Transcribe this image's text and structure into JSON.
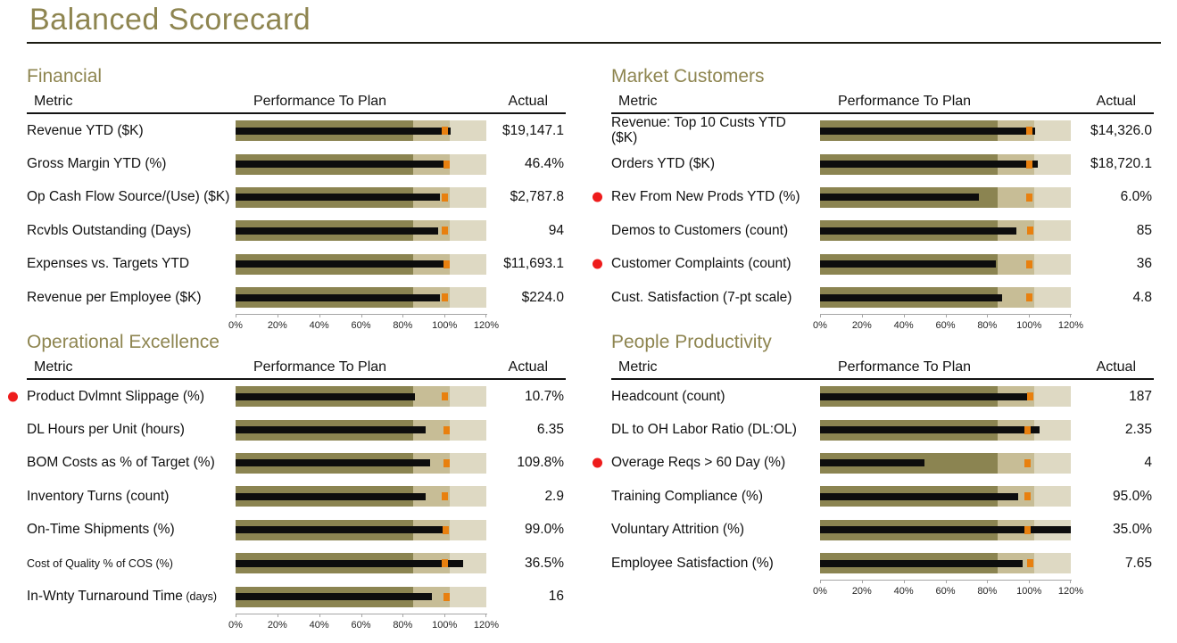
{
  "page": {
    "title": "Balanced Scorecard"
  },
  "columns": {
    "metric": "Metric",
    "performance": "Performance To Plan",
    "actual": "Actual"
  },
  "axis": {
    "tick_labels": [
      "0%",
      "20%",
      "40%",
      "60%",
      "80%",
      "100%",
      "120%"
    ],
    "min_pct": 0,
    "max_pct": 120
  },
  "colors": {
    "accent_olive": "#8e8550",
    "band_low": "#8b8451",
    "band_mid": "#c7bd96",
    "band_high": "#ded9c3",
    "value_bar": "#0d0d0d",
    "target_marker": "#e8800f",
    "alert_dot": "#ee1c1c",
    "text": "#1a1a1a"
  },
  "chart_data": [
    {
      "type": "bullet",
      "title": "Financial",
      "bands_pct": [
        85,
        102.5,
        120
      ],
      "rows": [
        {
          "metric": "Revenue YTD ($K)",
          "actual": "$19,147.1",
          "performance_pct": 103,
          "target_pct": 100,
          "alert": false
        },
        {
          "metric": "Gross Margin YTD (%)",
          "actual": "46.4%",
          "performance_pct": 99.5,
          "target_pct": 101,
          "alert": false
        },
        {
          "metric": "Op Cash Flow Source/(Use) ($K)",
          "actual": "$2,787.8",
          "performance_pct": 98,
          "target_pct": 100,
          "alert": false
        },
        {
          "metric": "Rcvbls Outstanding (Days)",
          "actual": "94",
          "performance_pct": 97,
          "target_pct": 100,
          "alert": false
        },
        {
          "metric": "Expenses vs. Targets YTD",
          "actual": "$11,693.1",
          "performance_pct": 100,
          "target_pct": 100.8,
          "alert": false
        },
        {
          "metric": "Revenue per Employee ($K)",
          "actual": "$224.0",
          "performance_pct": 98,
          "target_pct": 100,
          "alert": false
        }
      ]
    },
    {
      "type": "bullet",
      "title": "Market Customers",
      "bands_pct": [
        85,
        102.5,
        120
      ],
      "rows": [
        {
          "metric": "Revenue: Top 10 Custs YTD ($K)",
          "actual": "$14,326.0",
          "performance_pct": 103,
          "target_pct": 100,
          "alert": false
        },
        {
          "metric": "Orders YTD ($K)",
          "actual": "$18,720.1",
          "performance_pct": 104,
          "target_pct": 100,
          "alert": false
        },
        {
          "metric": "Rev From New Prods YTD (%)",
          "actual": "6.0%",
          "performance_pct": 76,
          "target_pct": 100,
          "alert": true
        },
        {
          "metric": "Demos to Customers (count)",
          "actual": "85",
          "performance_pct": 94,
          "target_pct": 100.5,
          "alert": false
        },
        {
          "metric": "Customer Complaints (count)",
          "actual": "36",
          "performance_pct": 84,
          "target_pct": 100,
          "alert": true
        },
        {
          "metric": "Cust. Satisfaction (7-pt scale)",
          "actual": "4.8",
          "performance_pct": 87,
          "target_pct": 100,
          "alert": false
        }
      ]
    },
    {
      "type": "bullet",
      "title": "Operational Excellence",
      "bands_pct": [
        85,
        102.5,
        120
      ],
      "rows": [
        {
          "metric": "Product Dvlmnt Slippage (%)",
          "actual": "10.7%",
          "performance_pct": 86,
          "target_pct": 100,
          "alert": true
        },
        {
          "metric": "DL Hours per Unit (hours)",
          "actual": "6.35",
          "performance_pct": 91,
          "target_pct": 101,
          "alert": false
        },
        {
          "metric": "BOM Costs as % of Target (%)",
          "actual": "109.8%",
          "performance_pct": 93,
          "target_pct": 101,
          "alert": false
        },
        {
          "metric": "Inventory Turns (count)",
          "actual": "2.9",
          "performance_pct": 91,
          "target_pct": 100,
          "alert": false
        },
        {
          "metric": "On-Time Shipments (%)",
          "actual": "99.0%",
          "performance_pct": 99.5,
          "target_pct": 100.5,
          "alert": false
        },
        {
          "metric": "Cost of Quality % of COS (%)",
          "actual": "36.5%",
          "performance_pct": 109,
          "target_pct": 100,
          "alert": false,
          "small": true
        },
        {
          "metric": "In-Wnty Turnaround Time",
          "metric_suffix": "(days)",
          "actual": "16",
          "performance_pct": 94,
          "target_pct": 101,
          "alert": false
        }
      ]
    },
    {
      "type": "bullet",
      "title": "People Productivity",
      "bands_pct": [
        85,
        102.5,
        120
      ],
      "rows": [
        {
          "metric": "Headcount (count)",
          "actual": "187",
          "performance_pct": 99,
          "target_pct": 100.5,
          "alert": false
        },
        {
          "metric": "DL to OH Labor Ratio (DL:OL)",
          "actual": "2.35",
          "performance_pct": 105,
          "target_pct": 99.5,
          "alert": false
        },
        {
          "metric": "Overage Reqs > 60 Day (%)",
          "actual": "4",
          "performance_pct": 50,
          "target_pct": 99.5,
          "alert": true
        },
        {
          "metric": "Training Compliance (%)",
          "actual": "95.0%",
          "performance_pct": 95,
          "target_pct": 99.5,
          "alert": false
        },
        {
          "metric": "Voluntary Attrition (%)",
          "actual": "35.0%",
          "performance_pct": 120,
          "target_pct": 99.5,
          "alert": false
        },
        {
          "metric": "Employee Satisfaction (%)",
          "actual": "7.65",
          "performance_pct": 97,
          "target_pct": 100.5,
          "alert": false
        }
      ]
    }
  ]
}
